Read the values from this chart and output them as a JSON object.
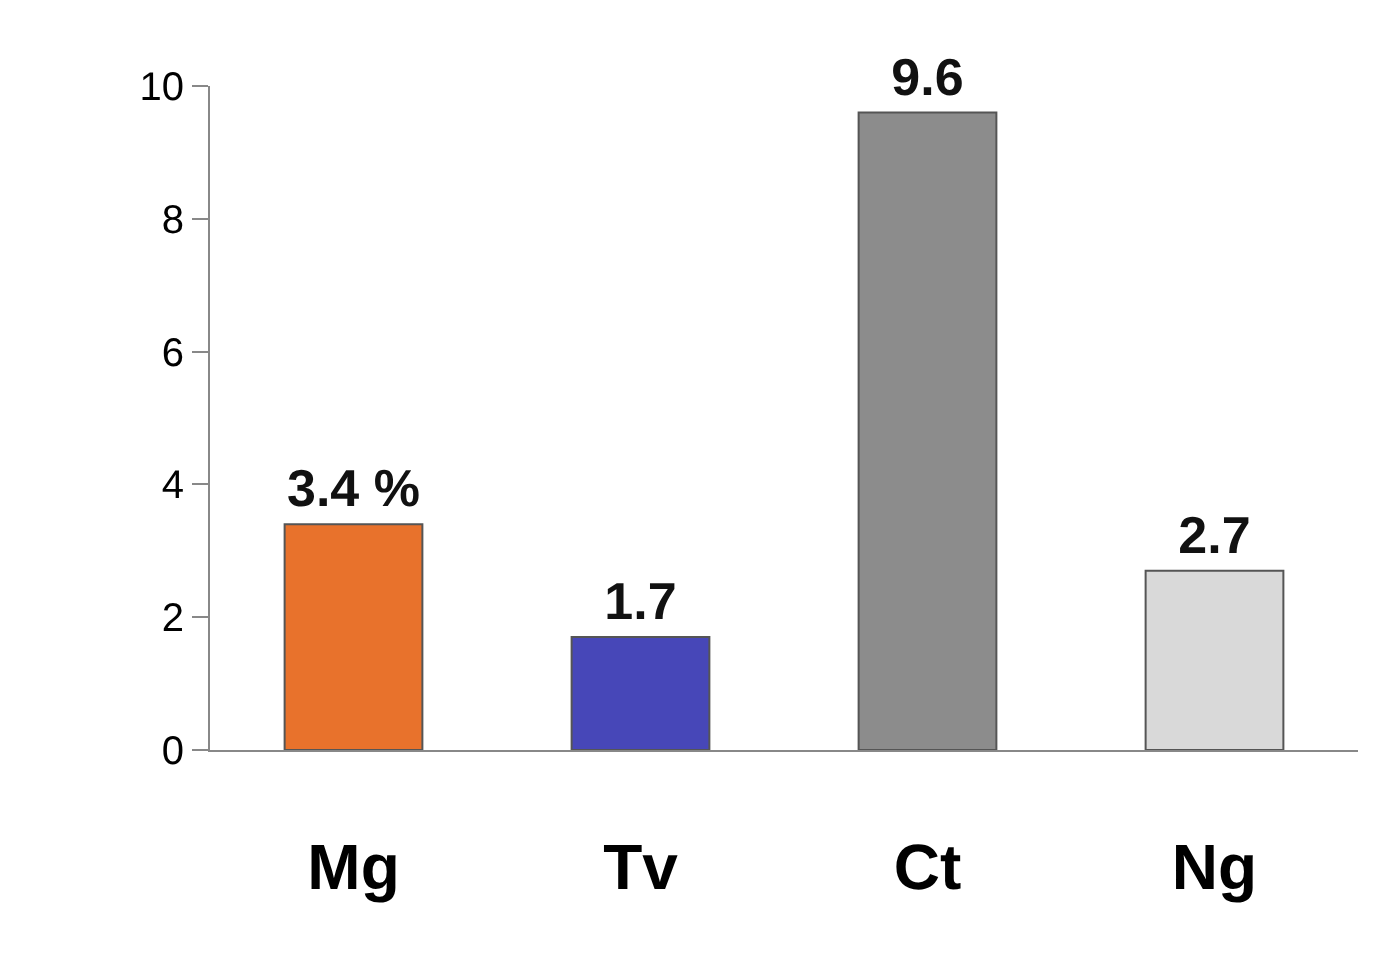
{
  "chart_data": {
    "type": "bar",
    "categories": [
      "Mg",
      "Tv",
      "Ct",
      "Ng"
    ],
    "values": [
      3.4,
      1.7,
      9.6,
      2.7
    ],
    "colors": [
      "#e8722c",
      "#4747b8",
      "#8c8c8c",
      "#d9d9d9"
    ],
    "value_labels": [
      "3.4 %",
      "1.7",
      "9.6",
      "2.7"
    ],
    "ylim": [
      0,
      10
    ],
    "yticks": [
      0,
      2,
      4,
      6,
      8,
      10
    ]
  }
}
